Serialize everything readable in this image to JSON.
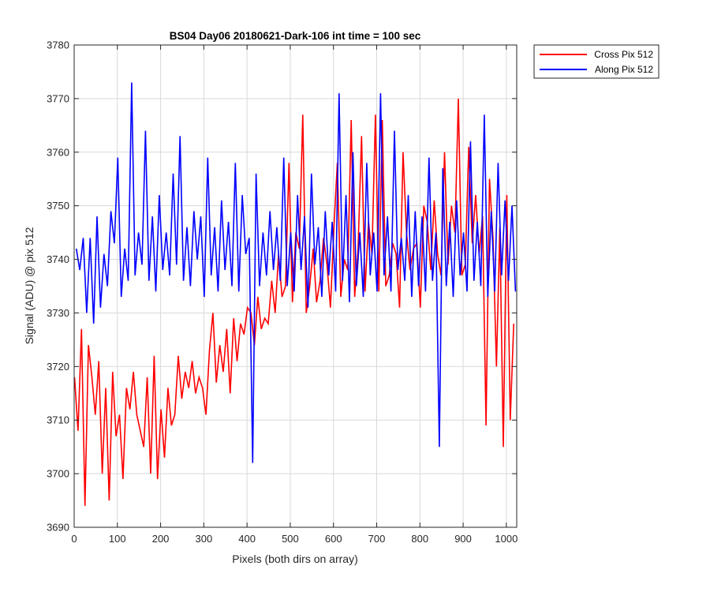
{
  "chart_data": {
    "type": "line",
    "title": "BS04 Day06 20180621-Dark-106 int time = 100 sec",
    "xlabel": "Pixels (both dirs on array)",
    "ylabel": "Signal (ADU) @ pix 512",
    "xlim": [
      0,
      1024
    ],
    "ylim": [
      3690,
      3780
    ],
    "xticks": [
      0,
      100,
      200,
      300,
      400,
      500,
      600,
      700,
      800,
      900,
      1000
    ],
    "yticks": [
      3690,
      3700,
      3710,
      3720,
      3730,
      3740,
      3750,
      3760,
      3770,
      3780
    ],
    "grid": true,
    "legend_position": "outside top-right",
    "series": [
      {
        "name": "Cross Pix 512",
        "color": "#ff0000",
        "x_start": 1,
        "x_step": 8,
        "values": [
          3718,
          3708,
          3727,
          3694,
          3724,
          3718,
          3711,
          3721,
          3700,
          3716,
          3695,
          3719,
          3707,
          3711,
          3699,
          3716,
          3712,
          3719,
          3711,
          3708,
          3705,
          3718,
          3700,
          3722,
          3699,
          3712,
          3703,
          3716,
          3709,
          3711,
          3722,
          3714,
          3719,
          3716,
          3721,
          3715,
          3718,
          3716,
          3711,
          3723,
          3730,
          3717,
          3724,
          3719,
          3727,
          3715,
          3729,
          3721,
          3728,
          3726,
          3731,
          3730,
          3724,
          3733,
          3727,
          3729,
          3728,
          3736,
          3730,
          3741,
          3733,
          3735,
          3758,
          3732,
          3745,
          3742,
          3767,
          3730,
          3735,
          3742,
          3732,
          3736,
          3744,
          3739,
          3731,
          3746,
          3758,
          3733,
          3740,
          3738,
          3766,
          3733,
          3742,
          3763,
          3734,
          3747,
          3741,
          3767,
          3734,
          3766,
          3735,
          3737,
          3743,
          3741,
          3731,
          3760,
          3745,
          3738,
          3742,
          3743,
          3731,
          3750,
          3747,
          3738,
          3751,
          3741,
          3737,
          3760,
          3739,
          3750,
          3745,
          3770,
          3737,
          3739,
          3761,
          3743,
          3752,
          3741,
          3748,
          3709,
          3755,
          3744,
          3720,
          3746,
          3705,
          3752,
          3710,
          3728
        ]
      },
      {
        "name": "Along Pix 512",
        "color": "#0000ff",
        "x_start": 5,
        "x_step": 8,
        "values": [
          3742,
          3738,
          3744,
          3730,
          3744,
          3728,
          3748,
          3731,
          3741,
          3735,
          3749,
          3743,
          3759,
          3733,
          3742,
          3736,
          3773,
          3737,
          3745,
          3739,
          3764,
          3736,
          3748,
          3734,
          3752,
          3738,
          3745,
          3737,
          3756,
          3739,
          3763,
          3736,
          3746,
          3735,
          3749,
          3740,
          3748,
          3733,
          3759,
          3737,
          3746,
          3734,
          3751,
          3738,
          3747,
          3735,
          3758,
          3734,
          3752,
          3741,
          3744,
          3702,
          3756,
          3735,
          3745,
          3737,
          3749,
          3738,
          3746,
          3736,
          3759,
          3735,
          3745,
          3734,
          3752,
          3738,
          3748,
          3731,
          3756,
          3739,
          3746,
          3733,
          3749,
          3737,
          3747,
          3734,
          3771,
          3736,
          3752,
          3732,
          3760,
          3735,
          3745,
          3733,
          3758,
          3737,
          3745,
          3734,
          3771,
          3737,
          3748,
          3734,
          3764,
          3738,
          3744,
          3736,
          3752,
          3733,
          3749,
          3735,
          3748,
          3734,
          3759,
          3736,
          3745,
          3705,
          3757,
          3735,
          3747,
          3733,
          3751,
          3737,
          3745,
          3734,
          3762,
          3736,
          3747,
          3735,
          3767,
          3733,
          3749,
          3734,
          3758,
          3737,
          3751,
          3736,
          3750,
          3734
        ]
      }
    ]
  }
}
